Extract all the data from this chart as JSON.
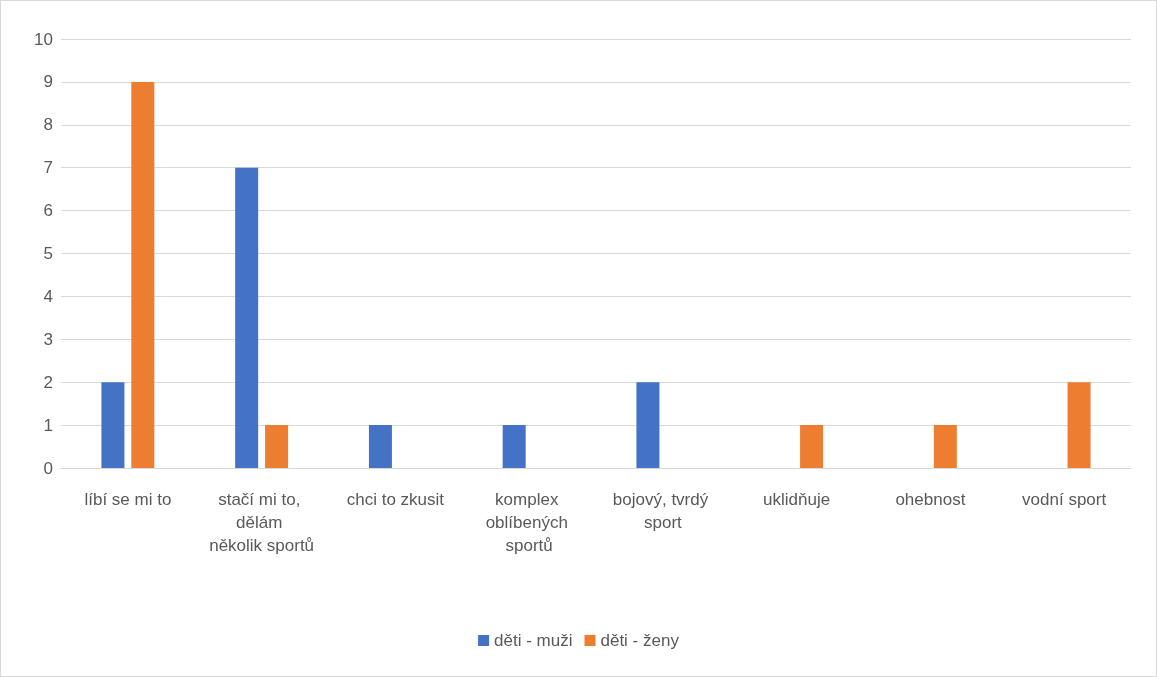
{
  "chart_data": {
    "type": "bar",
    "categories": [
      "líbí se mi to",
      "stačí mi to, dělám několik sportů",
      "chci to zkusit",
      "komplex oblíbených sportů",
      "bojový, tvrdý sport",
      "uklidňuje",
      "ohebnost",
      "vodní sport"
    ],
    "series": [
      {
        "name": "děti - muži",
        "color": "#4472c4",
        "values": [
          2,
          7,
          1,
          1,
          2,
          0,
          0,
          0
        ]
      },
      {
        "name": "děti - ženy",
        "color": "#ed7d31",
        "values": [
          9,
          1,
          0,
          0,
          0,
          1,
          1,
          2
        ]
      }
    ],
    "ylim": [
      0,
      10
    ],
    "yticks": [
      0,
      1,
      2,
      3,
      4,
      5,
      6,
      7,
      8,
      9,
      10
    ],
    "grid": "y",
    "legend": "bottom"
  }
}
